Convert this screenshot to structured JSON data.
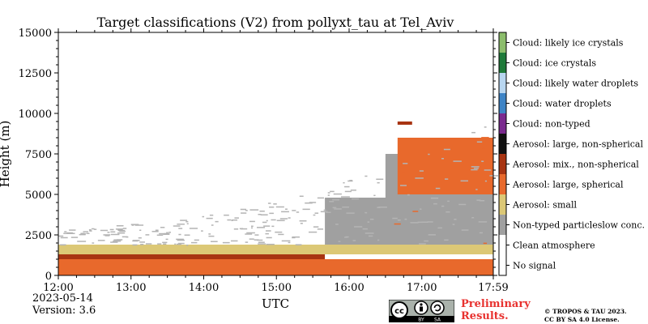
{
  "chart_data": {
    "type": "heatmap",
    "title": "Target classifications (V2) from pollyxt_tau at Tel_Aviv",
    "xlabel": "UTC",
    "ylabel": "Height (m)",
    "xlim": [
      "12:00",
      "17:59"
    ],
    "ylim": [
      0,
      15000
    ],
    "x_ticks": [
      "12:00",
      "13:00",
      "14:00",
      "15:00",
      "16:00",
      "17:00",
      "17:59"
    ],
    "y_ticks": [
      0,
      2500,
      5000,
      7500,
      10000,
      12500,
      15000
    ],
    "y_tick_labels": [
      "0",
      "2500",
      "5000",
      "7500",
      "10000",
      "12500",
      "15000"
    ],
    "legend_placement": "right colorbar",
    "classes": [
      {
        "label": "No signal",
        "color": "#ffffff"
      },
      {
        "label": "Clean atmosphere",
        "color": "#ffffff"
      },
      {
        "label": "Non-typed particleslow conc.",
        "color": "#a0a0a0"
      },
      {
        "label": "Aerosol: small",
        "color": "#dcc876"
      },
      {
        "label": "Aerosol: large, spherical",
        "color": "#e8692c"
      },
      {
        "label": "Aerosol: mix., non-spherical",
        "color": "#a83412"
      },
      {
        "label": "Aerosol: large, non-spherical",
        "color": "#111111"
      },
      {
        "label": "Cloud: non-typed",
        "color": "#7a2a8e"
      },
      {
        "label": "Cloud: water droplets",
        "color": "#3e84c6"
      },
      {
        "label": "Cloud: likely water droplets",
        "color": "#b8d6f0"
      },
      {
        "label": "Cloud: ice crystals",
        "color": "#1f7a3a"
      },
      {
        "label": "Cloud: likely ice crystals",
        "color": "#8cbd6c"
      }
    ],
    "layers": [
      {
        "class": "Aerosol: large, spherical",
        "x": [
          "12:00",
          "17:59"
        ],
        "height_m": [
          0,
          1000
        ]
      },
      {
        "class": "Aerosol: mix., non-spherical",
        "x": [
          "12:00",
          "15:40"
        ],
        "height_m": [
          1000,
          1300
        ]
      },
      {
        "class": "Aerosol: small",
        "x": [
          "12:00",
          "17:59"
        ],
        "height_m": [
          1300,
          1900
        ]
      },
      {
        "class": "Non-typed particleslow conc.",
        "x": [
          "15:40",
          "17:59"
        ],
        "height_m": [
          1900,
          4800
        ]
      },
      {
        "class": "Non-typed particleslow conc.",
        "x": [
          "16:30",
          "17:59"
        ],
        "height_m": [
          4800,
          7500
        ]
      },
      {
        "class": "Aerosol: large, spherical",
        "x": [
          "16:40",
          "17:59"
        ],
        "height_m": [
          5000,
          8500
        ]
      },
      {
        "class": "Aerosol: mix., non-spherical",
        "x": [
          "16:40",
          "16:52"
        ],
        "height_m": [
          9300,
          9500
        ]
      }
    ]
  },
  "footer": {
    "date": "2023-05-14",
    "version": "Version: 3.6",
    "preliminary": [
      "Preliminary",
      "Results."
    ],
    "copyright": [
      "© TROPOS & TAU 2023.",
      "CC BY SA 4.0 License."
    ],
    "cc_labels": [
      "BY",
      "SA"
    ]
  },
  "style": {
    "accent_red": "#e8322f"
  }
}
